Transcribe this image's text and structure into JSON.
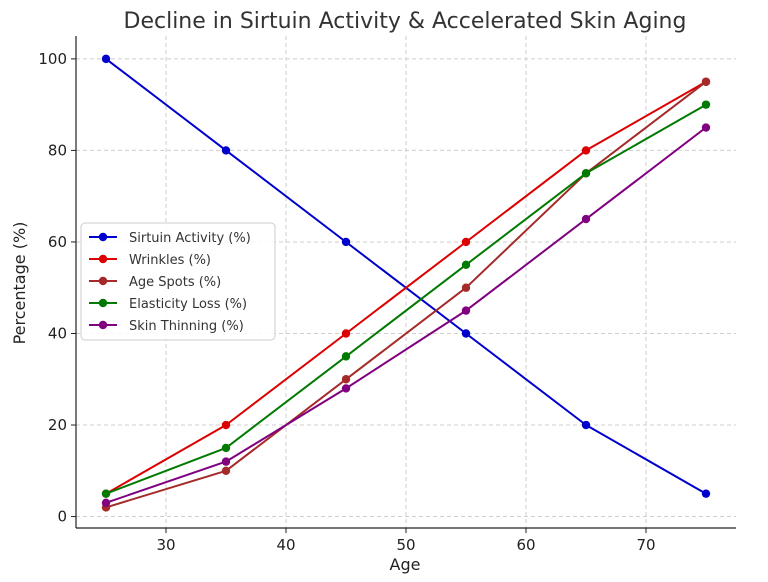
{
  "chart_data": {
    "type": "line",
    "title": "Decline in Sirtuin Activity & Accelerated Skin Aging",
    "xlabel": "Age",
    "ylabel": "Percentage (%)",
    "xlim": [
      22.5,
      77.5
    ],
    "ylim": [
      -2.5,
      105
    ],
    "xticks": [
      30,
      40,
      50,
      60,
      70
    ],
    "yticks": [
      0,
      20,
      40,
      60,
      80,
      100
    ],
    "grid": true,
    "legend_position": "center-left",
    "x": [
      25,
      35,
      45,
      55,
      65,
      75
    ],
    "series": [
      {
        "name": "Sirtuin Activity (%)",
        "color": "#0000cc",
        "values": [
          100,
          80,
          60,
          40,
          20,
          5
        ]
      },
      {
        "name": "Wrinkles (%)",
        "color": "#dd0000",
        "values": [
          5,
          20,
          40,
          60,
          80,
          95
        ]
      },
      {
        "name": "Age Spots (%)",
        "color": "#a52a2a",
        "values": [
          2,
          10,
          30,
          50,
          75,
          95
        ]
      },
      {
        "name": "Elasticity Loss (%)",
        "color": "#007a00",
        "values": [
          5,
          15,
          35,
          55,
          75,
          90
        ]
      },
      {
        "name": "Skin Thinning (%)",
        "color": "#800080",
        "values": [
          3,
          12,
          28,
          45,
          65,
          85
        ]
      }
    ]
  }
}
